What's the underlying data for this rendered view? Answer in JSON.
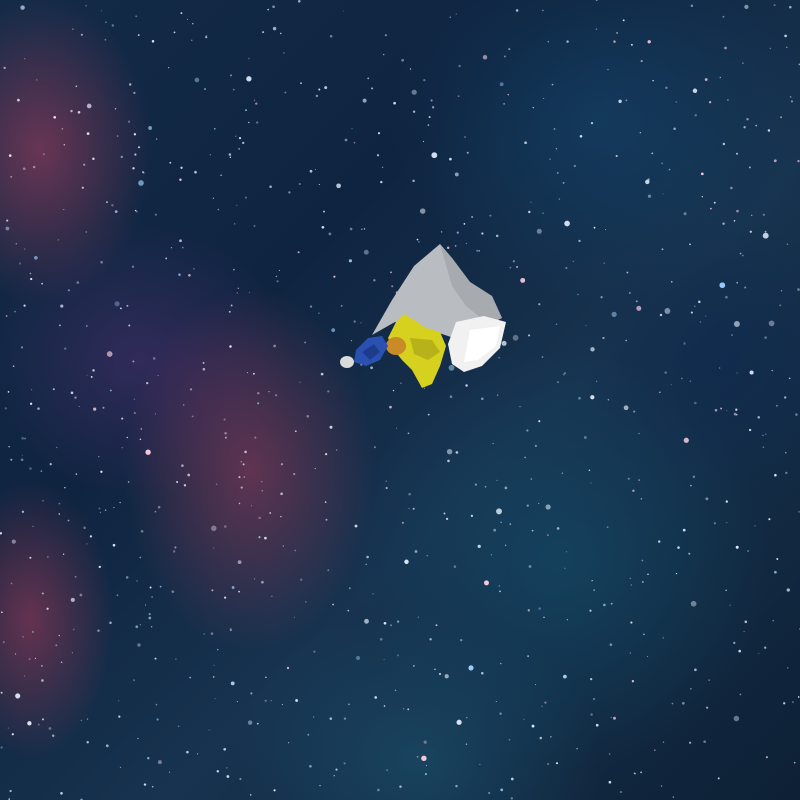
{
  "scene": {
    "subject": "astronaut-toy",
    "colors": {
      "suit_gray": "#b8bcc0",
      "torso_yellow": "#d8d21e",
      "boot_white": "#f2f2f2",
      "arm_blue": "#2a4fb0",
      "visor_orange": "#c98a28"
    }
  }
}
